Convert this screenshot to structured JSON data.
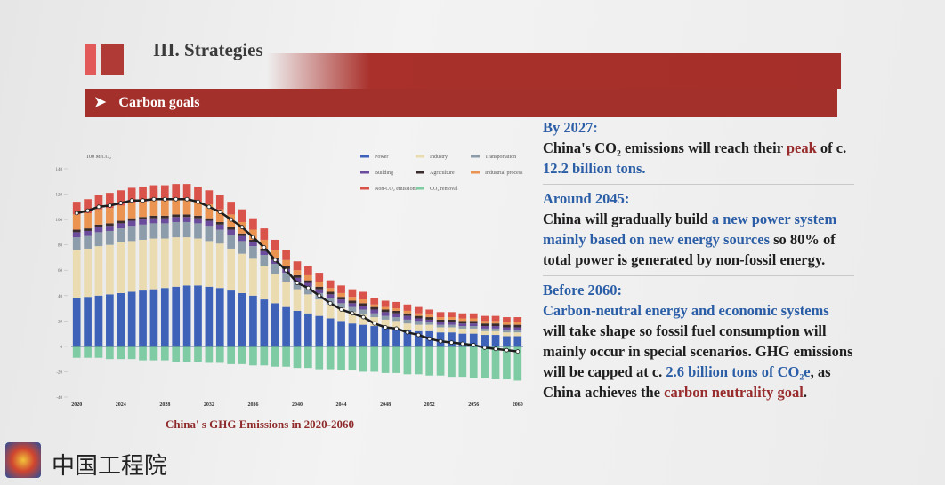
{
  "header": {
    "title": "III. Strategies",
    "subtitle": "Carbon goals",
    "subtitle_marker": "➤"
  },
  "chart_data": {
    "type": "bar",
    "stacked": true,
    "title": "China' s GHG Emissions in 2020-2060",
    "y_label": "100 MtCO₂",
    "categories": [
      2020,
      null,
      null,
      null,
      2024,
      null,
      null,
      null,
      2028,
      null,
      null,
      null,
      2032,
      null,
      null,
      null,
      2036,
      null,
      null,
      null,
      2040,
      null,
      null,
      null,
      2044,
      null,
      null,
      null,
      2048,
      null,
      null,
      null,
      2052,
      null,
      null,
      null,
      2056,
      null,
      null,
      null,
      2060
    ],
    "ylim": [
      -40,
      140
    ],
    "yticks": [
      -40,
      -20,
      0,
      20,
      40,
      60,
      80,
      100,
      120,
      140
    ],
    "series": [
      {
        "name": "Power",
        "color": "#3d62b8",
        "values": [
          38,
          39,
          40,
          41,
          42,
          43,
          44,
          45,
          46,
          47,
          48,
          48,
          47,
          46,
          44,
          42,
          40,
          37,
          34,
          31,
          28,
          26,
          24,
          22,
          20,
          18,
          17,
          16,
          15,
          14,
          13,
          12,
          12,
          11,
          11,
          10,
          10,
          9,
          9,
          8,
          8
        ]
      },
      {
        "name": "Industry",
        "color": "#eadbb0",
        "values": [
          38,
          38,
          39,
          39,
          40,
          40,
          40,
          40,
          39,
          39,
          38,
          37,
          36,
          35,
          33,
          31,
          29,
          26,
          23,
          20,
          17,
          15,
          13,
          11,
          10,
          9,
          8,
          7,
          6,
          6,
          5,
          5,
          5,
          4,
          4,
          4,
          4,
          3,
          3,
          3,
          3
        ]
      },
      {
        "name": "Transportation",
        "color": "#8d9cab",
        "values": [
          10,
          10,
          11,
          11,
          11,
          12,
          12,
          12,
          12,
          12,
          12,
          12,
          12,
          11,
          11,
          10,
          10,
          9,
          8,
          7,
          6,
          6,
          5,
          5,
          4,
          4,
          4,
          3,
          3,
          3,
          3,
          3,
          2,
          2,
          2,
          2,
          2,
          2,
          2,
          2,
          2
        ]
      },
      {
        "name": "Building",
        "color": "#6b4c9c",
        "values": [
          4,
          4,
          4,
          4,
          4,
          4,
          4,
          4,
          4,
          4,
          4,
          4,
          4,
          4,
          4,
          4,
          3,
          3,
          3,
          3,
          3,
          3,
          3,
          3,
          3,
          3,
          3,
          3,
          3,
          3,
          3,
          2,
          2,
          2,
          2,
          2,
          2,
          2,
          2,
          2,
          2
        ]
      },
      {
        "name": "Agriculture",
        "color": "#3a2c2c",
        "values": [
          2,
          2,
          2,
          2,
          2,
          2,
          2,
          2,
          2,
          2,
          2,
          2,
          2,
          2,
          2,
          2,
          2,
          2,
          2,
          2,
          2,
          2,
          2,
          2,
          2,
          2,
          2,
          2,
          2,
          2,
          2,
          2,
          2,
          2,
          2,
          2,
          2,
          2,
          2,
          2,
          2
        ]
      },
      {
        "name": "Industrial process",
        "color": "#eb9350",
        "values": [
          12,
          12,
          12,
          12,
          12,
          12,
          12,
          12,
          12,
          12,
          12,
          11,
          11,
          10,
          10,
          9,
          8,
          7,
          6,
          5,
          4,
          4,
          4,
          3,
          3,
          3,
          3,
          2,
          2,
          2,
          2,
          2,
          2,
          2,
          2,
          2,
          2,
          2,
          2,
          2,
          2
        ]
      },
      {
        "name": "Non-CO₂ emissions",
        "color": "#d9534a",
        "values": [
          10,
          11,
          11,
          12,
          12,
          12,
          12,
          12,
          12,
          12,
          12,
          12,
          11,
          11,
          10,
          10,
          9,
          9,
          8,
          8,
          7,
          7,
          7,
          6,
          6,
          6,
          6,
          5,
          5,
          5,
          5,
          5,
          4,
          4,
          4,
          4,
          4,
          4,
          4,
          4,
          4
        ]
      },
      {
        "name": "CO₂ removal",
        "color": "#7fcba3",
        "values": [
          -9,
          -9,
          -9,
          -10,
          -10,
          -10,
          -11,
          -11,
          -11,
          -12,
          -12,
          -12,
          -13,
          -13,
          -14,
          -14,
          -15,
          -15,
          -16,
          -16,
          -17,
          -17,
          -18,
          -18,
          -19,
          -19,
          -20,
          -20,
          -21,
          -21,
          -22,
          -22,
          -23,
          -23,
          -24,
          -24,
          -25,
          -25,
          -26,
          -26,
          -27
        ]
      },
      {
        "type": "line",
        "color": "#1e1e1e",
        "values": [
          105,
          107,
          110,
          111,
          113,
          115,
          115,
          116,
          116,
          116,
          116,
          114,
          110,
          106,
          100,
          94,
          86,
          78,
          68,
          60,
          50,
          46,
          40,
          34,
          29,
          26,
          23,
          18,
          15,
          14,
          11,
          9,
          6,
          4,
          3,
          2,
          1,
          -1,
          -2,
          -3,
          -4
        ]
      }
    ]
  },
  "panel": [
    {
      "heading": "By 2027:",
      "body": [
        {
          "text": "China's CO₂ emissions will reach their "
        },
        {
          "text": "peak",
          "color": "#982b2b"
        },
        {
          "text": " of c. "
        },
        {
          "text": "12.2 billion tons.",
          "color": "#2b5ea6"
        }
      ]
    },
    {
      "heading": "Around 2045:",
      "body": [
        {
          "text": "China will gradually build "
        },
        {
          "text": "a new power system mainly based on new energy sources",
          "color": "#2b5ea6"
        },
        {
          "text": " so 80% of total power is generated by non-fossil energy."
        }
      ]
    },
    {
      "heading": "Before 2060:",
      "body": [
        {
          "text": "Carbon-neutral energy and economic systems",
          "color": "#2b5ea6"
        },
        {
          "text": " will take shape so fossil fuel consumption will mainly occur in special scenarios. GHG emissions will be capped at c. "
        },
        {
          "text": "2.6 billion tons of CO₂e",
          "color": "#2b5ea6"
        },
        {
          "text": ", as China achieves the "
        },
        {
          "text": "carbon neutrality goal",
          "color": "#982b2b"
        },
        {
          "text": "."
        }
      ]
    }
  ],
  "footer": {
    "logo_text": "中国工程院"
  }
}
